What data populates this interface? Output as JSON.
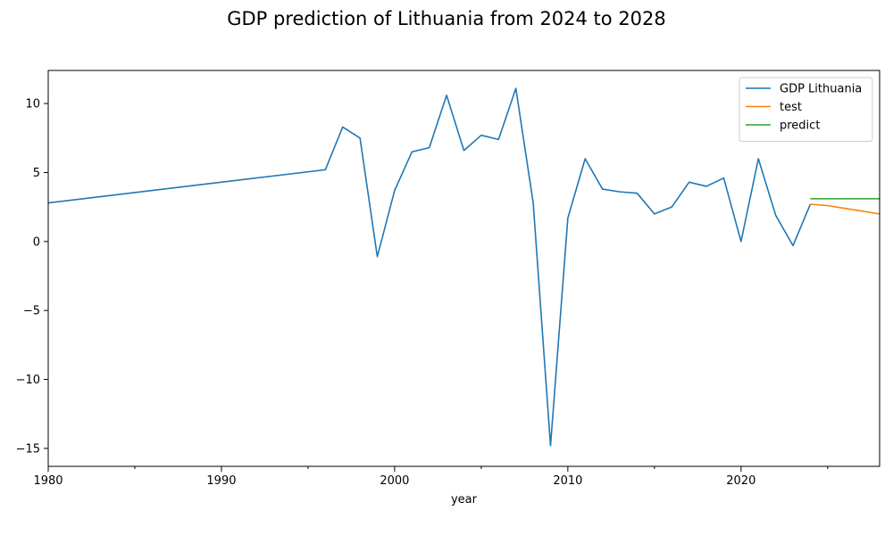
{
  "chart_data": {
    "type": "line",
    "title": "GDP prediction of Lithuania from 2024 to 2028",
    "xlabel": "year",
    "ylabel": "",
    "xlim": [
      1980,
      2028
    ],
    "ylim": [
      -16.3,
      12.4
    ],
    "x_ticks": [
      1980,
      1990,
      2000,
      2010,
      2020
    ],
    "x_tick_labels": [
      "1980",
      "1990",
      "2000",
      "2010",
      "2020"
    ],
    "x_minor_ticks": [
      1985,
      1995,
      2005,
      2015,
      2025
    ],
    "y_ticks": [
      10,
      5,
      0,
      -5,
      -10,
      -15
    ],
    "y_tick_labels": [
      "10",
      "5",
      "0",
      "−5",
      "−10",
      "−15"
    ],
    "grid": false,
    "legend_position": "upper-right",
    "series": [
      {
        "name": "GDP Lithuania",
        "color": "#1f77b4",
        "x": [
          1980,
          1996,
          1997,
          1998,
          1999,
          2000,
          2001,
          2002,
          2003,
          2004,
          2005,
          2006,
          2007,
          2008,
          2009,
          2010,
          2011,
          2012,
          2013,
          2014,
          2015,
          2016,
          2017,
          2018,
          2019,
          2020,
          2021,
          2022,
          2023,
          2024
        ],
        "y": [
          2.8,
          5.2,
          8.3,
          7.5,
          -1.1,
          3.7,
          6.5,
          6.8,
          10.6,
          6.6,
          7.7,
          7.4,
          11.1,
          2.8,
          -14.8,
          1.7,
          6.0,
          3.8,
          3.6,
          3.5,
          2.0,
          2.5,
          4.3,
          4.0,
          4.6,
          0.0,
          6.0,
          1.9,
          -0.3,
          2.7
        ]
      },
      {
        "name": "test",
        "color": "#ff7f0e",
        "x": [
          2024,
          2025,
          2026,
          2027,
          2028
        ],
        "y": [
          2.7,
          2.6,
          2.4,
          2.2,
          2.0
        ]
      },
      {
        "name": "predict",
        "color": "#2ca02c",
        "x": [
          2024,
          2025,
          2026,
          2027,
          2028
        ],
        "y": [
          3.1,
          3.1,
          3.1,
          3.1,
          3.1
        ]
      }
    ]
  }
}
